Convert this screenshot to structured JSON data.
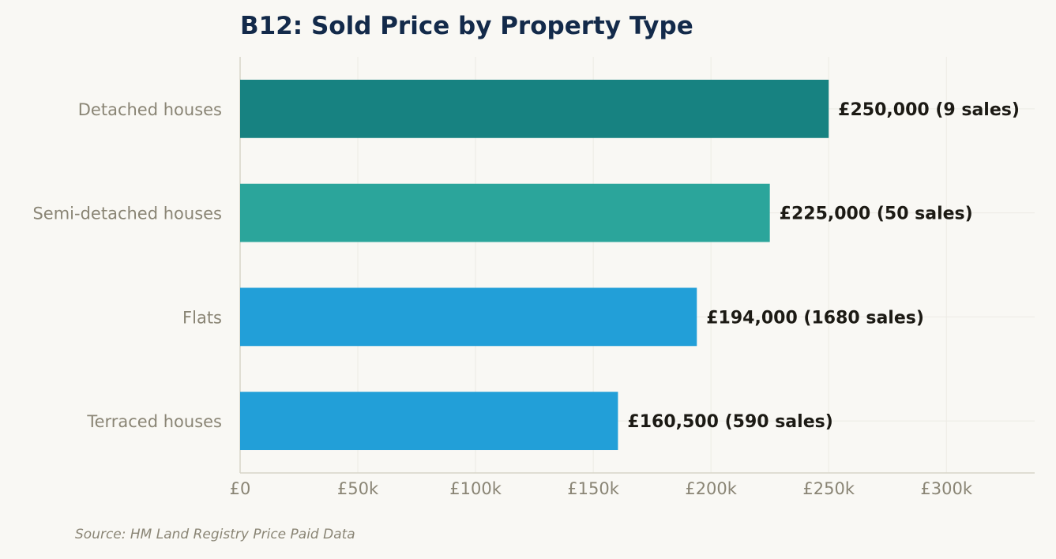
{
  "chart_data": {
    "type": "bar",
    "orientation": "horizontal",
    "title": "B12: Sold Price by Property Type",
    "source": "Source: HM Land Registry Price Paid Data",
    "categories": [
      "Detached houses",
      "Semi-detached houses",
      "Flats",
      "Terraced houses"
    ],
    "values": [
      250000,
      225000,
      194000,
      160500
    ],
    "sales": [
      9,
      50,
      1680,
      590
    ],
    "data_labels": [
      "£250,000  (9 sales)",
      "£225,000  (50 sales)",
      "£194,000  (1680 sales)",
      "£160,500  (590 sales)"
    ],
    "bar_colors": [
      "#178281",
      "#2ba59b",
      "#229fd8",
      "#229fd8"
    ],
    "x_ticks": [
      0,
      50000,
      100000,
      150000,
      200000,
      250000,
      300000
    ],
    "x_tick_labels": [
      "£0",
      "£50k",
      "£100k",
      "£150k",
      "£200k",
      "£250k",
      "£300k"
    ],
    "xlim": [
      0,
      337500
    ],
    "xlabel": "",
    "ylabel": "",
    "grid": true,
    "legend": "none"
  }
}
